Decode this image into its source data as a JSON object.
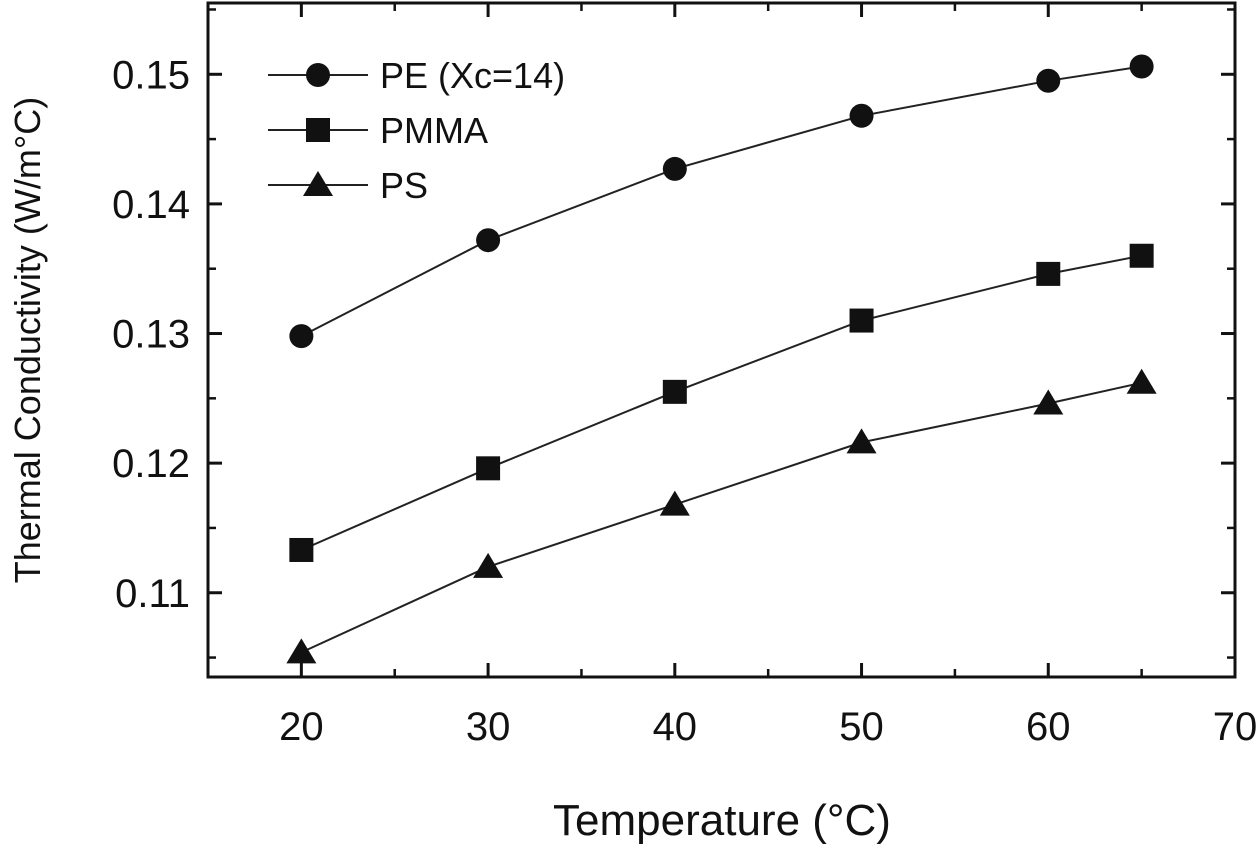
{
  "chart_data": {
    "type": "line",
    "xlabel": "Temperature (°C)",
    "ylabel": "Thermal Conductivity (W/m°C)",
    "xlim": [
      15,
      70
    ],
    "ylim": [
      0.1035,
      0.1555
    ],
    "xticks": [
      20,
      30,
      40,
      50,
      60,
      70
    ],
    "xtick_labels": [
      "20",
      "30",
      "40",
      "50",
      "60",
      "70"
    ],
    "yticks": [
      0.11,
      0.12,
      0.13,
      0.14,
      0.15
    ],
    "ytick_labels": [
      "0.11",
      "0.12",
      "0.13",
      "0.14",
      "0.15"
    ],
    "grid": false,
    "legend_position": "top-left",
    "x": [
      20,
      30,
      40,
      50,
      60,
      65
    ],
    "series": [
      {
        "name": "PE (Xc=14)",
        "marker": "circle",
        "values": [
          0.1298,
          0.1372,
          0.1427,
          0.1468,
          0.1495,
          0.1506
        ]
      },
      {
        "name": "PMMA",
        "marker": "square",
        "values": [
          0.1133,
          0.1196,
          0.1255,
          0.131,
          0.1346,
          0.136
        ]
      },
      {
        "name": "PS",
        "marker": "triangle",
        "values": [
          0.1054,
          0.112,
          0.1168,
          0.1216,
          0.1246,
          0.1262
        ]
      }
    ],
    "colors": {
      "line": "#222222",
      "marker": "#111111",
      "axes": "#111111"
    }
  }
}
